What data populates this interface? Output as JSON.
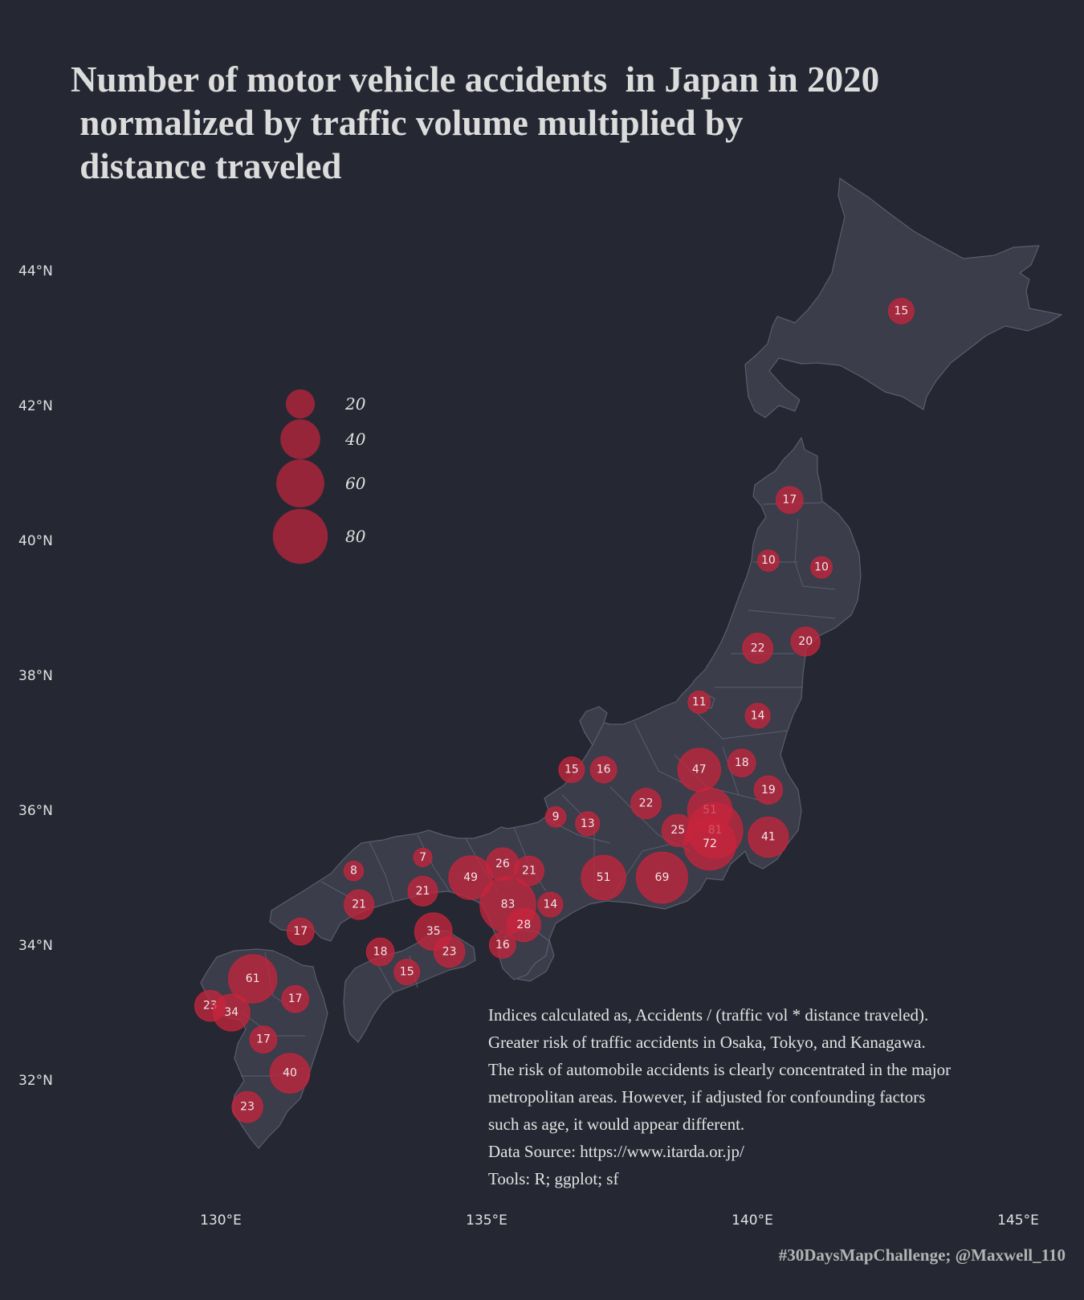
{
  "title_lines": [
    "Number of motor vehicle accidents  in Japan in 2020",
    " normalized by traffic volume multiplied by",
    " distance traveled"
  ],
  "colors": {
    "background": "#252832",
    "land": "#3b3d4a",
    "borders": "#5a5d6c",
    "bubble": "#c8243c",
    "text": "#e0e0e0"
  },
  "chart_data": {
    "type": "bubble-map",
    "lat_ticks": [
      "44°N",
      "42°N",
      "40°N",
      "38°N",
      "36°N",
      "34°N",
      "32°N"
    ],
    "lon_ticks": [
      "130°E",
      "135°E",
      "140°E",
      "145°E"
    ],
    "legend": {
      "title": "",
      "values": [
        20,
        40,
        60,
        80
      ],
      "labels": [
        "20",
        "40",
        "60",
        "80"
      ]
    },
    "points": [
      {
        "lon": 142.8,
        "lat": 43.4,
        "value": 15,
        "label": "15"
      },
      {
        "lon": 140.7,
        "lat": 40.6,
        "value": 17,
        "label": "17"
      },
      {
        "lon": 140.3,
        "lat": 39.7,
        "value": 10,
        "label": "10"
      },
      {
        "lon": 141.3,
        "lat": 39.6,
        "value": 10,
        "label": "10"
      },
      {
        "lon": 140.1,
        "lat": 38.4,
        "value": 22,
        "label": "22"
      },
      {
        "lon": 141.0,
        "lat": 38.5,
        "value": 20,
        "label": "20"
      },
      {
        "lon": 139.0,
        "lat": 37.6,
        "value": 11,
        "label": "11"
      },
      {
        "lon": 140.1,
        "lat": 37.4,
        "value": 14,
        "label": "14"
      },
      {
        "lon": 139.0,
        "lat": 36.6,
        "value": 47,
        "label": "47"
      },
      {
        "lon": 139.8,
        "lat": 36.7,
        "value": 18,
        "label": "18"
      },
      {
        "lon": 140.3,
        "lat": 36.3,
        "value": 19,
        "label": "19"
      },
      {
        "lon": 139.2,
        "lat": 36.0,
        "value": 51,
        "label": "51"
      },
      {
        "lon": 139.3,
        "lat": 35.7,
        "value": 81,
        "label": "81"
      },
      {
        "lon": 139.2,
        "lat": 35.5,
        "value": 72,
        "label": "72"
      },
      {
        "lon": 140.3,
        "lat": 35.6,
        "value": 41,
        "label": "41"
      },
      {
        "lon": 138.6,
        "lat": 35.7,
        "value": 25,
        "label": "25"
      },
      {
        "lon": 138.0,
        "lat": 36.1,
        "value": 22,
        "label": "22"
      },
      {
        "lon": 138.3,
        "lat": 35.0,
        "value": 69,
        "label": "69"
      },
      {
        "lon": 137.2,
        "lat": 35.0,
        "value": 51,
        "label": "51"
      },
      {
        "lon": 136.6,
        "lat": 36.6,
        "value": 15,
        "label": "15"
      },
      {
        "lon": 137.2,
        "lat": 36.6,
        "value": 16,
        "label": "16"
      },
      {
        "lon": 136.3,
        "lat": 35.9,
        "value": 9,
        "label": "9"
      },
      {
        "lon": 136.9,
        "lat": 35.8,
        "value": 13,
        "label": "13"
      },
      {
        "lon": 135.8,
        "lat": 35.1,
        "value": 21,
        "label": "21"
      },
      {
        "lon": 135.3,
        "lat": 35.2,
        "value": 26,
        "label": "26"
      },
      {
        "lon": 134.7,
        "lat": 35.0,
        "value": 49,
        "label": "49"
      },
      {
        "lon": 135.4,
        "lat": 34.6,
        "value": 83,
        "label": "83"
      },
      {
        "lon": 135.7,
        "lat": 34.3,
        "value": 28,
        "label": "28"
      },
      {
        "lon": 136.2,
        "lat": 34.6,
        "value": 14,
        "label": "14"
      },
      {
        "lon": 135.3,
        "lat": 34.0,
        "value": 16,
        "label": "16"
      },
      {
        "lon": 133.8,
        "lat": 35.3,
        "value": 7,
        "label": "7"
      },
      {
        "lon": 132.5,
        "lat": 35.1,
        "value": 8,
        "label": "8"
      },
      {
        "lon": 133.8,
        "lat": 34.8,
        "value": 21,
        "label": "21"
      },
      {
        "lon": 132.6,
        "lat": 34.6,
        "value": 21,
        "label": "21"
      },
      {
        "lon": 131.5,
        "lat": 34.2,
        "value": 17,
        "label": "17"
      },
      {
        "lon": 134.0,
        "lat": 34.2,
        "value": 35,
        "label": "35"
      },
      {
        "lon": 134.3,
        "lat": 33.9,
        "value": 23,
        "label": "23"
      },
      {
        "lon": 133.0,
        "lat": 33.9,
        "value": 18,
        "label": "18"
      },
      {
        "lon": 133.5,
        "lat": 33.6,
        "value": 15,
        "label": "15"
      },
      {
        "lon": 130.6,
        "lat": 33.5,
        "value": 61,
        "label": "61"
      },
      {
        "lon": 131.4,
        "lat": 33.2,
        "value": 17,
        "label": "17"
      },
      {
        "lon": 129.8,
        "lat": 33.1,
        "value": 23,
        "label": "23"
      },
      {
        "lon": 130.2,
        "lat": 33.0,
        "value": 34,
        "label": "34"
      },
      {
        "lon": 130.8,
        "lat": 32.6,
        "value": 17,
        "label": "17"
      },
      {
        "lon": 131.3,
        "lat": 32.1,
        "value": 40,
        "label": "40"
      },
      {
        "lon": 130.5,
        "lat": 31.6,
        "value": 23,
        "label": "23"
      }
    ]
  },
  "notes": [
    "Indices calculated as, Accidents / (traffic vol * distance traveled).",
    "Greater risk of traffic accidents in Osaka, Tokyo, and Kanagawa.",
    "The risk of automobile accidents is clearly concentrated in the major",
    "metropolitan areas. However, if adjusted for confounding factors",
    "such as age, it would appear different.",
    "Data Source: https://www.itarda.or.jp/",
    "Tools: R; ggplot; sf"
  ],
  "credit": "#30DaysMapChallenge; @Maxwell_110"
}
